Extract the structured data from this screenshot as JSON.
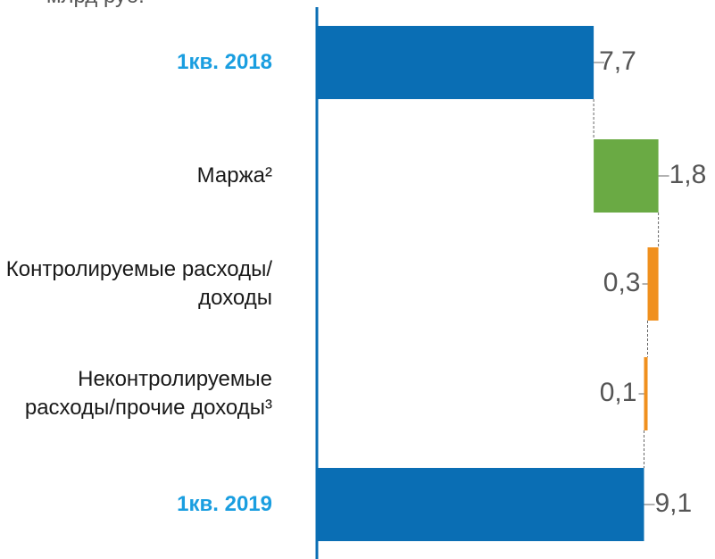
{
  "chart_data": {
    "type": "waterfall",
    "subtitle": "млрд руб.",
    "categories": [
      "1кв. 2018",
      "Маржа²",
      "Контролируемые расходы/доходы",
      "Неконтролируемые расходы/прочие доходы³",
      "1кв. 2019"
    ],
    "values": [
      7.7,
      1.8,
      -0.3,
      -0.1,
      9.1
    ],
    "value_labels": [
      "7,7",
      "1,8",
      "0,3",
      "0,1",
      "9,1"
    ],
    "totals": [
      true,
      false,
      false,
      false,
      true
    ],
    "total_color": "#0a6eb4",
    "increase_color": "#6aaa44",
    "decrease_color": "#f0901e",
    "xlim": [
      0,
      11
    ]
  }
}
